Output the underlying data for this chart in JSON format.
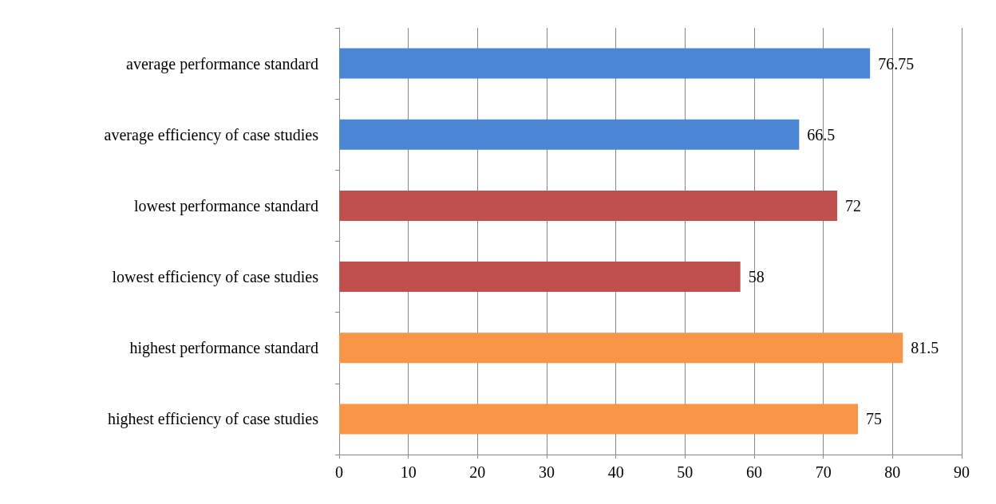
{
  "chart_data": {
    "type": "bar",
    "orientation": "horizontal",
    "categories": [
      "average performance standard",
      "average efficiency of case studies",
      "lowest performance standard",
      "lowest efficiency of case studies",
      "highest performance standard",
      "highest efficiency of case studies"
    ],
    "values": [
      76.75,
      66.5,
      72,
      58,
      81.5,
      75
    ],
    "colors": [
      "#4a86d4",
      "#4a86d4",
      "#c0504d",
      "#c0504d",
      "#f79646",
      "#f79646"
    ],
    "xlim": [
      0,
      90
    ],
    "xticks": [
      0,
      10,
      20,
      30,
      40,
      50,
      60,
      70,
      80,
      90
    ],
    "grid": "x",
    "data_labels": true
  }
}
